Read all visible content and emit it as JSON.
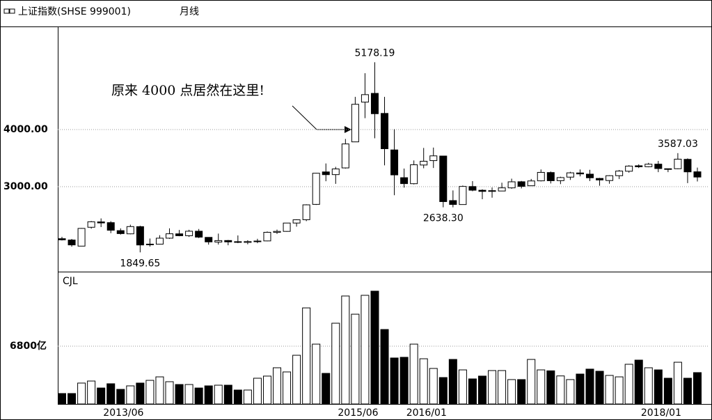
{
  "chart_data": {
    "type": "candlestick",
    "title": "上证指数(SHSE 999001)",
    "period": "月线",
    "volume_title": "CJL",
    "annotation": "原来 4000 点居然在这里!",
    "categories": [
      null,
      null,
      null,
      null,
      null,
      null,
      null,
      null,
      "2013/06",
      null,
      null,
      null,
      null,
      null,
      null,
      null,
      null,
      null,
      null,
      null,
      null,
      null,
      null,
      null,
      null,
      null,
      null,
      null,
      null,
      null,
      null,
      null,
      "2015/06",
      null,
      null,
      null,
      null,
      null,
      null,
      "2016/01",
      null,
      null,
      null,
      null,
      null,
      null,
      null,
      null,
      null,
      null,
      null,
      null,
      null,
      null,
      null,
      null,
      null,
      null,
      null,
      null,
      null,
      null,
      null,
      "2018/01",
      null,
      null
    ],
    "open": [
      2089,
      2066,
      1959,
      2289,
      2383,
      2370,
      2230,
      2174,
      2300,
      1994,
      1993,
      2098,
      2174,
      2141,
      2220,
      2112,
      2030,
      2057,
      2037,
      2024,
      2037,
      2050,
      2200,
      2217,
      2363,
      2421,
      2690,
      3258,
      3211,
      3328,
      3784,
      4480,
      4633,
      4282,
      3643,
      3157,
      3052,
      3379,
      3456,
      3536,
      2756,
      2687,
      3002,
      2937,
      2917,
      2924,
      2979,
      3086,
      3016,
      3102,
      3247,
      3105,
      3167,
      3240,
      3219,
      3144,
      3107,
      3192,
      3270,
      3366,
      3349,
      3394,
      3314,
      3314,
      3478,
      3260
    ],
    "high": [
      2122,
      2084,
      2276,
      2398,
      2444,
      2396,
      2270,
      2334,
      2315,
      2092,
      2150,
      2270,
      2242,
      2245,
      2259,
      2113,
      2178,
      2066,
      2146,
      2062,
      2087,
      2215,
      2248,
      2364,
      2428,
      2691,
      3239,
      3406,
      3347,
      3835,
      4572,
      4986,
      5178.19,
      4572,
      4006,
      3317,
      3459,
      3678,
      3684,
      3539,
      2934,
      3019,
      3097,
      2954,
      2986,
      3069,
      3140,
      3100,
      3135,
      3301,
      3265,
      3174,
      3260,
      3301,
      3295,
      3154,
      3200,
      3291,
      3375,
      3391,
      3417,
      3450,
      3315,
      3587.03,
      3495,
      3334
    ],
    "low": [
      2058,
      1949,
      1959,
      2264,
      2292,
      2186,
      2161,
      2166,
      1849.65,
      1951,
      1987,
      2086,
      2132,
      2120,
      2100,
      1985,
      1987,
      1974,
      2011,
      1991,
      2010,
      2043,
      2172,
      2211,
      2300,
      2396,
      2680,
      3095,
      3049,
      3317,
      3784,
      4199,
      3847,
      3373,
      2850,
      2983,
      3039,
      3322,
      3327,
      2638.3,
      2638,
      2687,
      2920,
      2780,
      2807,
      2925,
      2963,
      2969,
      3016,
      3092,
      3056,
      3045,
      3118,
      3180,
      3098,
      3016,
      3051,
      3133,
      3245,
      3326,
      3340,
      3254,
      3254,
      3306,
      3062,
      3091
    ],
    "close": [
      2069,
      1980,
      2269,
      2385,
      2365,
      2237,
      2178,
      2301,
      1979,
      1994,
      2098,
      2175,
      2141,
      2220,
      2116,
      2033,
      2056,
      2033,
      2026,
      2039,
      2048,
      2201,
      2217,
      2363,
      2420,
      2682,
      3235,
      3210,
      3310,
      3748,
      4442,
      4611,
      4277,
      3664,
      3206,
      3053,
      3383,
      3445,
      3539,
      2738,
      2688,
      3004,
      2938,
      2917,
      2930,
      2979,
      3085,
      3005,
      3100,
      3250,
      3104,
      3159,
      3242,
      3223,
      3155,
      3117,
      3192,
      3273,
      3360,
      3348,
      3393,
      3317,
      3307,
      3481,
      3259,
      3168
    ],
    "volume": [
      1230,
      1230,
      2460,
      2700,
      1880,
      2380,
      1720,
      2130,
      2460,
      2780,
      3190,
      2620,
      2290,
      2290,
      1880,
      2130,
      2210,
      2210,
      1640,
      1640,
      3030,
      3280,
      4260,
      3770,
      5730,
      11300,
      7040,
      3600,
      9500,
      12700,
      10560,
      12780,
      13270,
      8760,
      5410,
      5490,
      7040,
      5320,
      4180,
      3110,
      5240,
      4010,
      2950,
      3280,
      3930,
      3930,
      2870,
      2870,
      5240,
      4010,
      3900,
      3300,
      2870,
      3520,
      4100,
      3850,
      3360,
      3190,
      4670,
      5160,
      4260,
      4010,
      3030,
      4910,
      3030,
      3690
    ],
    "extremes": [
      {
        "value": 5178.19,
        "label": "5178.19"
      },
      {
        "value": 1849.65,
        "label": "1849.65"
      },
      {
        "value": 2638.3,
        "label": "2638.30"
      },
      {
        "value": 3587.03,
        "label": "3587.03"
      }
    ],
    "ylim": [
      1512,
      5780
    ],
    "yticks": [
      {
        "value": 4000,
        "label": "4000.00"
      },
      {
        "value": 3000,
        "label": "3000.00"
      }
    ],
    "volume_ylim": [
      0,
      15400
    ],
    "volume_yticks": [
      {
        "value": 6800,
        "label": "6800亿"
      }
    ],
    "grid": true,
    "up_color": "#ffffff",
    "down_color": "#000000"
  }
}
